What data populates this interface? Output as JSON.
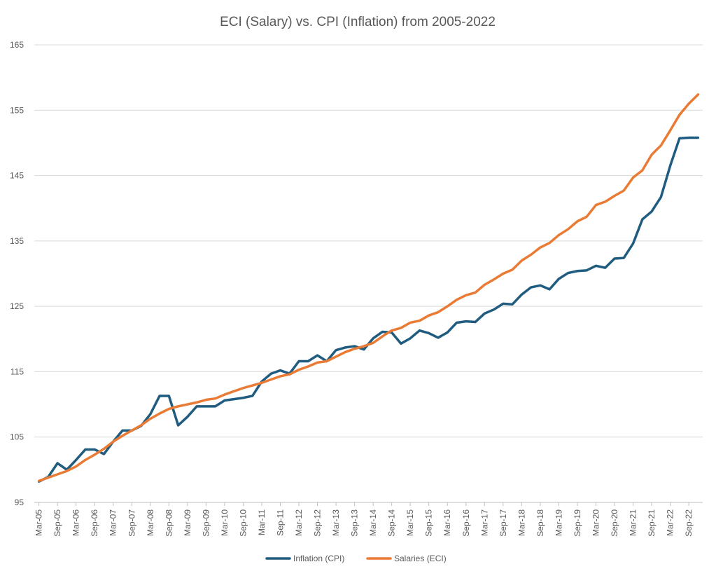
{
  "chart_data": {
    "type": "line",
    "title": "ECI (Salary) vs. CPI (Inflation) from 2005-2022",
    "xlabel": "",
    "ylabel": "",
    "ylim": [
      95,
      165
    ],
    "yticks": [
      95,
      105,
      115,
      125,
      135,
      145,
      155,
      165
    ],
    "grid": true,
    "legend_position": "bottom",
    "x": [
      "Mar-05",
      "Jun-05",
      "Sep-05",
      "Dec-05",
      "Mar-06",
      "Jun-06",
      "Sep-06",
      "Dec-06",
      "Mar-07",
      "Jun-07",
      "Sep-07",
      "Dec-07",
      "Mar-08",
      "Jun-08",
      "Sep-08",
      "Dec-08",
      "Mar-09",
      "Jun-09",
      "Sep-09",
      "Dec-09",
      "Mar-10",
      "Jun-10",
      "Sep-10",
      "Dec-10",
      "Mar-11",
      "Jun-11",
      "Sep-11",
      "Dec-11",
      "Mar-12",
      "Jun-12",
      "Sep-12",
      "Dec-12",
      "Mar-13",
      "Jun-13",
      "Sep-13",
      "Dec-13",
      "Mar-14",
      "Jun-14",
      "Sep-14",
      "Dec-14",
      "Mar-15",
      "Jun-15",
      "Sep-15",
      "Dec-15",
      "Mar-16",
      "Jun-16",
      "Sep-16",
      "Dec-16",
      "Mar-17",
      "Jun-17",
      "Sep-17",
      "Dec-17",
      "Mar-18",
      "Jun-18",
      "Sep-18",
      "Dec-18",
      "Mar-19",
      "Jun-19",
      "Sep-19",
      "Dec-19",
      "Mar-20",
      "Jun-20",
      "Sep-20",
      "Dec-20",
      "Mar-21",
      "Jun-21",
      "Sep-21",
      "Dec-21",
      "Mar-22",
      "Jun-22",
      "Sep-22",
      "Dec-22"
    ],
    "xtick_labels": [
      "Mar-05",
      "Sep-05",
      "Mar-06",
      "Sep-06",
      "Mar-07",
      "Sep-07",
      "Mar-08",
      "Sep-08",
      "Mar-09",
      "Sep-09",
      "Mar-10",
      "Sep-10",
      "Mar-11",
      "Sep-11",
      "Mar-12",
      "Sep-12",
      "Mar-13",
      "Sep-13",
      "Mar-14",
      "Sep-14",
      "Mar-15",
      "Sep-15",
      "Mar-16",
      "Sep-16",
      "Mar-17",
      "Sep-17",
      "Mar-18",
      "Sep-18",
      "Mar-19",
      "Sep-19",
      "Mar-20",
      "Sep-20",
      "Mar-21",
      "Sep-21",
      "Mar-22",
      "Sep-22"
    ],
    "series": [
      {
        "name": "Inflation (CPI)",
        "color": "#1F5C7F",
        "values": [
          98.2,
          98.9,
          101.0,
          100.0,
          101.5,
          103.1,
          103.1,
          102.4,
          104.3,
          106.0,
          106.0,
          106.7,
          108.5,
          111.3,
          111.3,
          106.8,
          108.1,
          109.7,
          109.7,
          109.7,
          110.6,
          110.8,
          111.0,
          111.3,
          113.5,
          114.7,
          115.2,
          114.7,
          116.6,
          116.6,
          117.5,
          116.6,
          118.3,
          118.7,
          118.9,
          118.4,
          120.1,
          121.1,
          121.0,
          119.3,
          120.1,
          121.3,
          120.9,
          120.2,
          121.0,
          122.5,
          122.7,
          122.6,
          123.9,
          124.5,
          125.4,
          125.3,
          126.8,
          127.9,
          128.2,
          127.6,
          129.2,
          130.1,
          130.4,
          130.5,
          131.2,
          130.9,
          132.3,
          132.4,
          134.6,
          138.3,
          139.5,
          141.7,
          146.5,
          150.7,
          150.8,
          150.8
        ]
      },
      {
        "name": "Salaries (ECI)",
        "color": "#E97B35",
        "values": [
          98.3,
          98.8,
          99.3,
          99.8,
          100.5,
          101.5,
          102.3,
          103.2,
          104.3,
          105.2,
          106.0,
          106.8,
          107.8,
          108.6,
          109.3,
          109.7,
          110.0,
          110.3,
          110.7,
          110.9,
          111.5,
          112.0,
          112.5,
          112.9,
          113.3,
          113.8,
          114.3,
          114.6,
          115.3,
          115.8,
          116.4,
          116.6,
          117.3,
          118.0,
          118.5,
          118.9,
          119.4,
          120.4,
          121.3,
          121.7,
          122.5,
          122.8,
          123.6,
          124.1,
          125.0,
          126.0,
          126.7,
          127.1,
          128.3,
          129.1,
          130.0,
          130.6,
          132.0,
          132.9,
          134.0,
          134.7,
          135.9,
          136.8,
          138.0,
          138.7,
          140.5,
          141.0,
          141.9,
          142.7,
          144.7,
          145.8,
          148.2,
          149.6,
          151.9,
          154.3,
          156.0,
          157.4
        ]
      }
    ]
  }
}
